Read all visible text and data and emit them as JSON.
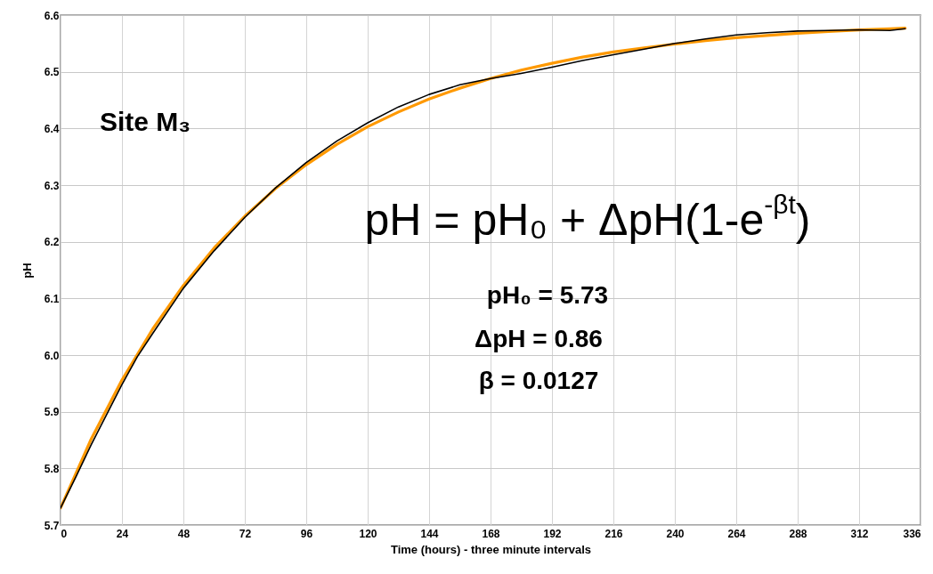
{
  "chart_data": {
    "type": "line",
    "xlabel": "Time (hours) - three minute intervals",
    "ylabel": "pH",
    "xlim": [
      0,
      336
    ],
    "xticks": [
      0,
      24,
      48,
      72,
      96,
      120,
      144,
      168,
      192,
      216,
      240,
      264,
      288,
      312,
      336
    ],
    "ylim": [
      5.7,
      6.6
    ],
    "yticks": [
      5.7,
      5.8,
      5.9,
      {
        "value": 6,
        "label": "6.0"
      },
      6.1,
      6.2,
      6.3,
      6.4,
      6.5,
      6.6
    ],
    "grid": true,
    "series": [
      {
        "color": "#ff9900",
        "x": [
          0,
          12,
          24,
          36,
          48,
          60,
          72,
          84,
          96,
          108,
          120,
          132,
          144,
          156,
          168,
          180,
          192,
          204,
          216,
          228,
          240,
          252,
          264,
          276,
          288,
          300,
          312,
          324,
          330
        ],
        "values": [
          5.73,
          5.852,
          5.956,
          6.046,
          6.123,
          6.189,
          6.245,
          6.294,
          6.336,
          6.372,
          6.403,
          6.429,
          6.452,
          6.471,
          6.488,
          6.503,
          6.515,
          6.526,
          6.535,
          6.542,
          6.549,
          6.555,
          6.56,
          6.564,
          6.568,
          6.571,
          6.574,
          6.576,
          6.577
        ]
      },
      {
        "color": "#000000",
        "x": [
          0,
          6,
          12,
          18,
          24,
          30,
          36,
          48,
          60,
          72,
          84,
          96,
          108,
          120,
          132,
          144,
          156,
          168,
          180,
          192,
          204,
          216,
          228,
          240,
          252,
          264,
          276,
          288,
          300,
          312,
          324,
          330
        ],
        "values": [
          5.73,
          5.785,
          5.842,
          5.895,
          5.948,
          5.997,
          6.038,
          6.118,
          6.184,
          6.243,
          6.295,
          6.34,
          6.378,
          6.41,
          6.438,
          6.46,
          6.477,
          6.488,
          6.497,
          6.508,
          6.52,
          6.53,
          6.54,
          6.55,
          6.558,
          6.565,
          6.569,
          6.572,
          6.573,
          6.574,
          6.573,
          6.576
        ]
      }
    ],
    "annotations": [
      "Site M₃",
      "pH = pH₀ + ΔpH(1-e$^{-βt}$)",
      "pH₀ = 5.73",
      "ΔpH = 0.86",
      "β = 0.0127"
    ]
  }
}
